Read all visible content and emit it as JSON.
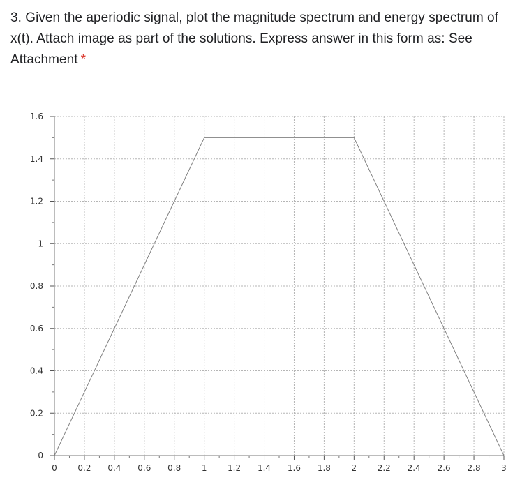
{
  "question": {
    "text": "3. Given the aperiodic signal, plot the magnitude spectrum and energy spectrum of x(t). Attach image as part of the solutions. Express answer in this form as: See Attachment",
    "required_marker": "*"
  },
  "chart_data": {
    "type": "line",
    "title": "",
    "xlabel": "",
    "ylabel": "",
    "xlim": [
      0,
      3
    ],
    "ylim": [
      0,
      1.6
    ],
    "grid": true,
    "x_ticks": [
      0,
      0.2,
      0.4,
      0.6,
      0.8,
      1,
      1.2,
      1.4,
      1.6,
      1.8,
      2,
      2.2,
      2.4,
      2.6,
      2.8,
      3
    ],
    "x_tick_labels": [
      "0",
      "0.2",
      "0.4",
      "0.6",
      "0.8",
      "1",
      "1.2",
      "1.4",
      "1.6",
      "1.8",
      "2",
      "2.2",
      "2.4",
      "2.6",
      "2.8",
      "3"
    ],
    "y_ticks": [
      0,
      0.2,
      0.4,
      0.6,
      0.8,
      1,
      1.2,
      1.4,
      1.6
    ],
    "y_tick_labels": [
      "0",
      "0.2",
      "0.4",
      "0.6",
      "0.8",
      "1",
      "1.2",
      "1.4",
      "1.6"
    ],
    "series": [
      {
        "x": [
          0,
          1,
          2,
          3
        ],
        "y": [
          0,
          1.5,
          1.5,
          0
        ],
        "color": "#808080"
      }
    ]
  }
}
